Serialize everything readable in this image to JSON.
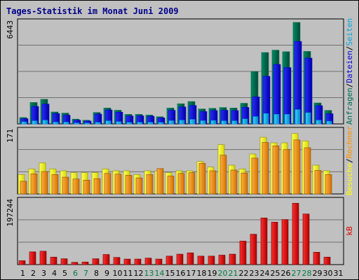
{
  "title": "Tages-Statistik im Monat Juni 2009",
  "chart_data": {
    "type": "bar",
    "title": "Tages-Statistik im Monat Juni 2009",
    "days": [
      "1",
      "2",
      "3",
      "4",
      "5",
      "6",
      "7",
      "8",
      "9",
      "10",
      "11",
      "12",
      "13",
      "14",
      "15",
      "16",
      "17",
      "18",
      "19",
      "20",
      "21",
      "22",
      "23",
      "24",
      "25",
      "26",
      "27",
      "28",
      "29",
      "30",
      "31"
    ],
    "weekend_days": [
      "6",
      "7",
      "13",
      "14",
      "20",
      "21",
      "27",
      "28"
    ],
    "colors": {
      "anfragen": "#006b4f",
      "dateien": "#0000d6",
      "seiten": "#00a5e0",
      "besuche": "#ffff00",
      "rechner": "#ff9000",
      "kb": "#e00000",
      "weekday_label": "#000000",
      "weekend_label": "#007c46",
      "title": "#00008b"
    },
    "panels": [
      {
        "ymax_label": "6443",
        "ymax": 6443,
        "series": [
          {
            "name": "Anfragen",
            "values": [
              400,
              1350,
              1550,
              750,
              680,
              300,
              230,
              720,
              1000,
              860,
              600,
              600,
              560,
              450,
              1000,
              1270,
              1410,
              940,
              980,
              1030,
              1000,
              1300,
              3300,
              4500,
              4650,
              4550,
              6400,
              4570,
              1320,
              850,
              0
            ]
          },
          {
            "name": "Dateien",
            "values": [
              330,
              1100,
              1250,
              650,
              550,
              230,
              180,
              620,
              880,
              740,
              500,
              510,
              480,
              380,
              860,
              1070,
              1160,
              780,
              840,
              860,
              840,
              1040,
              1700,
              3000,
              3750,
              3550,
              5200,
              4150,
              1150,
              640,
              0
            ]
          },
          {
            "name": "Seiten",
            "values": [
              130,
              190,
              230,
              110,
              110,
              60,
              50,
              90,
              190,
              140,
              90,
              100,
              100,
              90,
              200,
              230,
              280,
              200,
              210,
              190,
              190,
              310,
              460,
              650,
              600,
              600,
              900,
              700,
              230,
              170,
              0
            ]
          }
        ],
        "legend": [
          "Anfragen",
          "/",
          "Dateien",
          "/",
          "Seiten"
        ]
      },
      {
        "ymax_label": "171",
        "ymax": 171,
        "series": [
          {
            "name": "Besuche",
            "values": [
              52,
              67,
              83,
              67,
              62,
              57,
              57,
              57,
              67,
              62,
              62,
              52,
              62,
              62,
              57,
              62,
              62,
              87,
              72,
              132,
              77,
              67,
              107,
              152,
              137,
              137,
              162,
              142,
              77,
              62,
              0
            ]
          },
          {
            "name": "Rechner",
            "values": [
              34,
              54,
              60,
              52,
              45,
              40,
              37,
              41,
              55,
              53,
              50,
              43,
              52,
              68,
              48,
              55,
              57,
              82,
              62,
              104,
              64,
              56,
              96,
              138,
              129,
              119,
              145,
              124,
              63,
              52,
              0
            ]
          }
        ],
        "legend": [
          "Besuche",
          "/",
          "Rechner"
        ]
      },
      {
        "ymax_label": "197244",
        "ymax": 197244,
        "series": [
          {
            "name": "kB",
            "values": [
              12000,
              39000,
              41000,
              23000,
              18000,
              7000,
              8000,
              18000,
              31000,
              22000,
              17000,
              17000,
              20000,
              17000,
              26000,
              32000,
              36000,
              26000,
              26000,
              29000,
              32000,
              72000,
              93000,
              143000,
              130000,
              138000,
              188000,
              155000,
              38000,
              23000,
              0
            ]
          }
        ],
        "legend": [
          "kB"
        ]
      }
    ]
  }
}
